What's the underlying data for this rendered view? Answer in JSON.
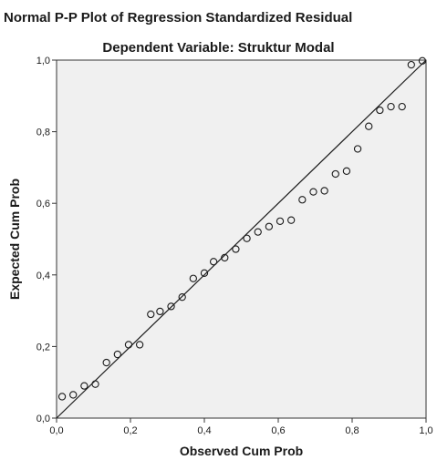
{
  "chart_data": {
    "type": "scatter",
    "title": "Normal P-P Plot of Regression Standardized Residual",
    "subtitle": "Dependent Variable: Struktur Modal",
    "xlabel": "Observed Cum Prob",
    "ylabel": "Expected Cum Prob",
    "xlim": [
      0,
      1
    ],
    "ylim": [
      0,
      1
    ],
    "xticks": [
      "0,0",
      "0,2",
      "0,4",
      "0,6",
      "0,8",
      "1,0"
    ],
    "yticks": [
      "0,0",
      "0,2",
      "0,4",
      "0,6",
      "0,8",
      "1,0"
    ],
    "grid": false,
    "reference_line": {
      "from": [
        0,
        0
      ],
      "to": [
        1,
        1
      ]
    },
    "points": [
      {
        "x": 0.015,
        "y": 0.06
      },
      {
        "x": 0.045,
        "y": 0.065
      },
      {
        "x": 0.075,
        "y": 0.09
      },
      {
        "x": 0.105,
        "y": 0.095
      },
      {
        "x": 0.135,
        "y": 0.155
      },
      {
        "x": 0.165,
        "y": 0.178
      },
      {
        "x": 0.195,
        "y": 0.205
      },
      {
        "x": 0.225,
        "y": 0.205
      },
      {
        "x": 0.255,
        "y": 0.29
      },
      {
        "x": 0.28,
        "y": 0.298
      },
      {
        "x": 0.31,
        "y": 0.312
      },
      {
        "x": 0.34,
        "y": 0.338
      },
      {
        "x": 0.37,
        "y": 0.39
      },
      {
        "x": 0.4,
        "y": 0.405
      },
      {
        "x": 0.425,
        "y": 0.437
      },
      {
        "x": 0.455,
        "y": 0.448
      },
      {
        "x": 0.485,
        "y": 0.472
      },
      {
        "x": 0.515,
        "y": 0.502
      },
      {
        "x": 0.545,
        "y": 0.52
      },
      {
        "x": 0.575,
        "y": 0.535
      },
      {
        "x": 0.605,
        "y": 0.55
      },
      {
        "x": 0.635,
        "y": 0.553
      },
      {
        "x": 0.665,
        "y": 0.61
      },
      {
        "x": 0.695,
        "y": 0.632
      },
      {
        "x": 0.725,
        "y": 0.635
      },
      {
        "x": 0.755,
        "y": 0.682
      },
      {
        "x": 0.785,
        "y": 0.69
      },
      {
        "x": 0.815,
        "y": 0.752
      },
      {
        "x": 0.845,
        "y": 0.815
      },
      {
        "x": 0.875,
        "y": 0.86
      },
      {
        "x": 0.905,
        "y": 0.87
      },
      {
        "x": 0.935,
        "y": 0.87
      },
      {
        "x": 0.96,
        "y": 0.987
      },
      {
        "x": 0.99,
        "y": 0.998
      }
    ]
  }
}
